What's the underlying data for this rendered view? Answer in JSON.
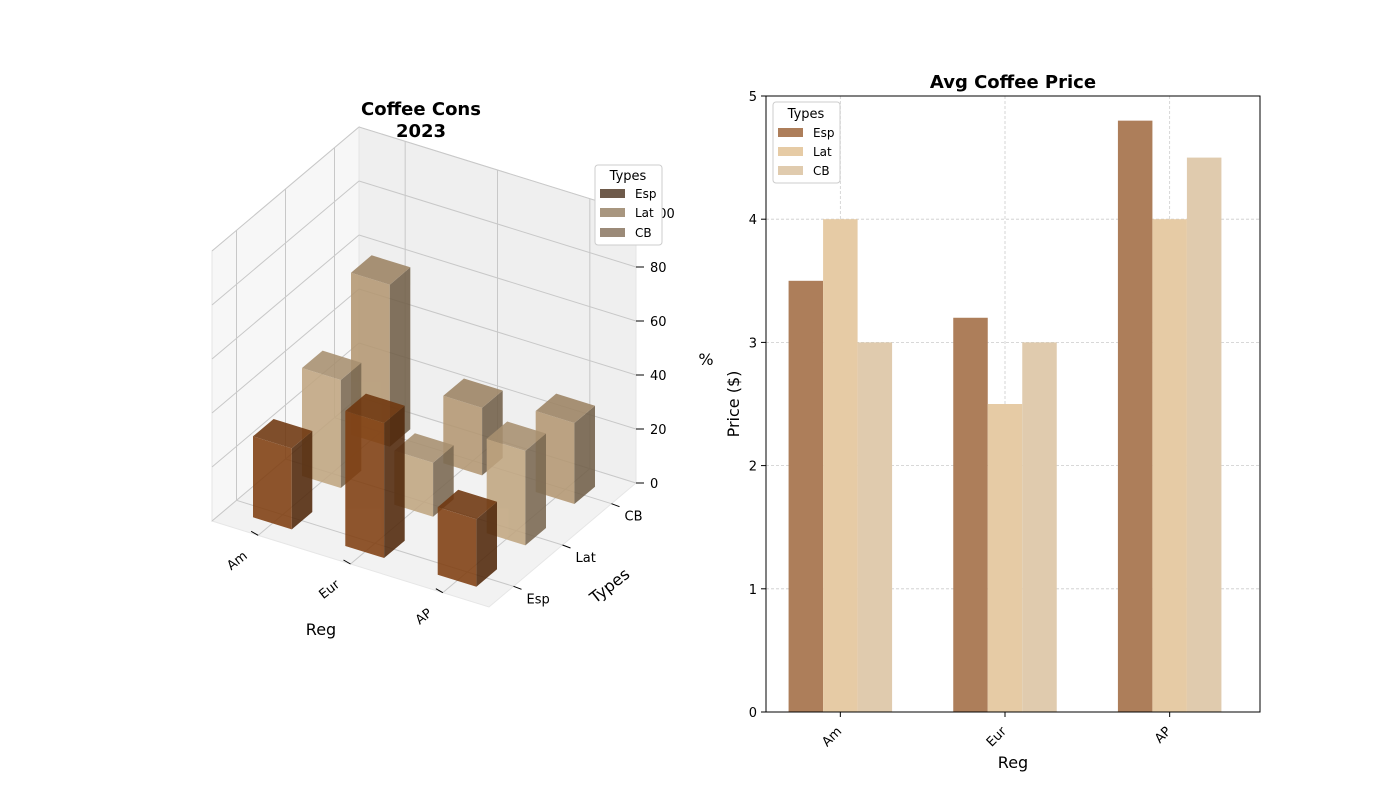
{
  "chart_data": [
    {
      "type": "bar3d",
      "title_lines": [
        "Coffee Cons",
        "2023"
      ],
      "xlabel": "Reg",
      "ylabel": "Types",
      "zlabel": "%",
      "zlim": [
        0,
        100
      ],
      "zticks": [
        "0",
        "20",
        "40",
        "60",
        "80",
        "100"
      ],
      "categories": [
        "Am",
        "Eur",
        "AP"
      ],
      "types": [
        "Esp",
        "Lat",
        "CB"
      ],
      "series": [
        {
          "name": "Esp",
          "values": [
            30,
            50,
            25
          ],
          "color": "#8b4513"
        },
        {
          "name": "Lat",
          "values": [
            40,
            20,
            35
          ],
          "color": "#d2b48c"
        },
        {
          "name": "CB",
          "values": [
            60,
            25,
            30
          ],
          "color": "#c4a57d"
        }
      ],
      "legend": {
        "title": "Types",
        "placement": "upper-right",
        "entries": [
          {
            "label": "Esp",
            "color": "#6e5a4a"
          },
          {
            "label": "Lat",
            "color": "#a8967f"
          },
          {
            "label": "CB",
            "color": "#9b8a78"
          }
        ]
      }
    },
    {
      "type": "bar",
      "title": "Avg Coffee Price",
      "xlabel": "Reg",
      "ylabel": "Price ($)",
      "categories": [
        "Am",
        "Eur",
        "AP"
      ],
      "ylim": [
        0,
        5
      ],
      "yticks": [
        "0",
        "1",
        "2",
        "3",
        "4",
        "5"
      ],
      "grid": true,
      "series": [
        {
          "name": "Esp",
          "values": [
            3.5,
            3.2,
            4.8
          ],
          "color": "#ad7e5a"
        },
        {
          "name": "Lat",
          "values": [
            4.0,
            2.5,
            4.0
          ],
          "color": "#e6cba5"
        },
        {
          "name": "CB",
          "values": [
            3.0,
            3.0,
            4.5
          ],
          "color": "#e0cbae"
        }
      ],
      "legend": {
        "title": "Types",
        "placement": "upper-left"
      }
    }
  ]
}
